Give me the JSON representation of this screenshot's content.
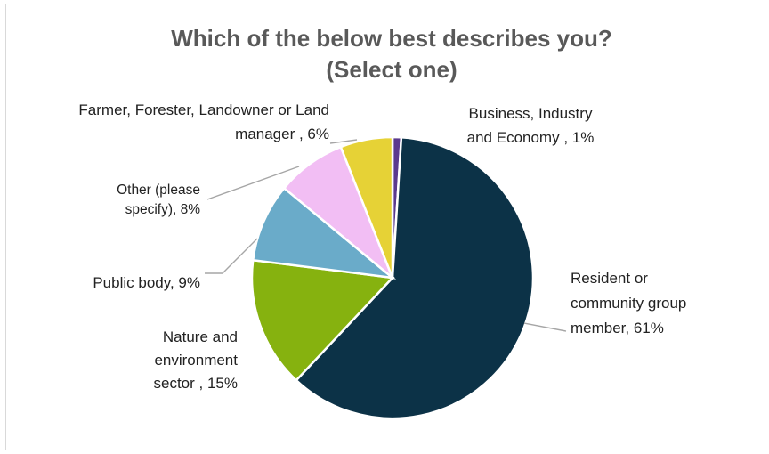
{
  "chart_data": {
    "type": "pie",
    "title_line1": "Which of the below best describes you?",
    "title_line2": "(Select one)",
    "slices": [
      {
        "category": "Business, Industry and Economy",
        "value": 1,
        "color": "#5b3a8e",
        "label_lines": [
          "Business, Industry",
          "and Economy , 1%"
        ]
      },
      {
        "category": "Resident or community group member",
        "value": 61,
        "color": "#0c3247",
        "label_lines": [
          "Resident or",
          "community group",
          "member, 61%"
        ]
      },
      {
        "category": "Nature and environment sector",
        "value": 15,
        "color": "#86b20f",
        "label_lines": [
          "Nature and",
          "environment",
          "sector , 15%"
        ]
      },
      {
        "category": "Public body",
        "value": 9,
        "color": "#6aabc9",
        "label_lines": [
          "Public body, 9%"
        ]
      },
      {
        "category": "Other (please specify)",
        "value": 8,
        "color": "#f2bef4",
        "label_lines": [
          "Other (please",
          "specify), 8%"
        ]
      },
      {
        "category": "Farmer, Forester, Landowner or Land manager",
        "value": 6,
        "color": "#e6d236",
        "label_lines": [
          "Farmer, Forester, Landowner or Land",
          "manager , 6%"
        ]
      }
    ]
  }
}
